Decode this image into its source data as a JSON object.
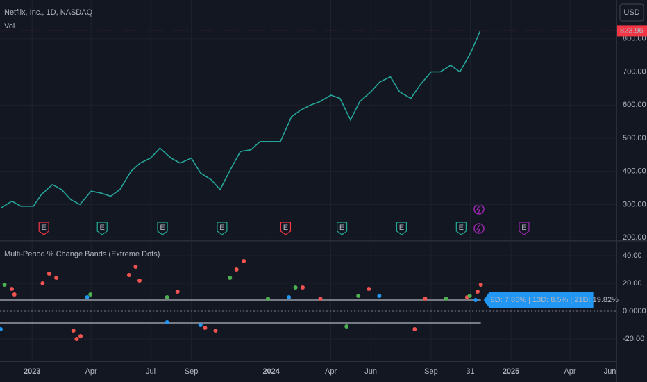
{
  "chart_data": [
    {
      "type": "line",
      "title": "Netflix, Inc., 1D, NASDAQ",
      "subtitle": "Vol",
      "currency": "USD",
      "color": "#26a69a",
      "x": [
        "2022-11-15",
        "2022-12-01",
        "2022-12-15",
        "2023-01-03",
        "2023-01-15",
        "2023-02-01",
        "2023-02-15",
        "2023-03-01",
        "2023-03-15",
        "2023-04-01",
        "2023-04-15",
        "2023-05-01",
        "2023-05-15",
        "2023-06-01",
        "2023-06-15",
        "2023-07-01",
        "2023-07-15",
        "2023-08-01",
        "2023-08-15",
        "2023-09-01",
        "2023-09-15",
        "2023-10-01",
        "2023-10-15",
        "2023-11-01",
        "2023-11-15",
        "2023-12-01",
        "2023-12-15",
        "2024-01-01",
        "2024-01-15",
        "2024-02-01",
        "2024-02-15",
        "2024-03-01",
        "2024-03-15",
        "2024-04-01",
        "2024-04-15",
        "2024-05-01",
        "2024-05-15",
        "2024-06-01",
        "2024-06-15",
        "2024-07-01",
        "2024-07-15",
        "2024-08-01",
        "2024-08-15",
        "2024-09-01",
        "2024-09-15",
        "2024-10-01",
        "2024-10-15",
        "2024-11-01",
        "2024-11-15"
      ],
      "values": [
        290,
        310,
        295,
        295,
        330,
        360,
        345,
        315,
        300,
        340,
        335,
        325,
        345,
        400,
        425,
        440,
        470,
        440,
        425,
        440,
        395,
        375,
        345,
        410,
        460,
        465,
        490,
        490,
        490,
        565,
        585,
        600,
        610,
        630,
        620,
        555,
        610,
        640,
        670,
        685,
        640,
        620,
        660,
        700,
        700,
        720,
        700,
        760,
        824
      ],
      "last_price": 823.96,
      "last_price_color": "#f23645",
      "ylim": [
        194,
        917
      ],
      "yticks": [
        {
          "value": 200,
          "label": "200.00"
        },
        {
          "value": 300,
          "label": "300.00"
        },
        {
          "value": 400,
          "label": "400.00"
        },
        {
          "value": 500,
          "label": "500.00"
        },
        {
          "value": 600,
          "label": "600.00"
        },
        {
          "value": 700,
          "label": "700.00"
        },
        {
          "value": 800,
          "label": "800.00"
        }
      ],
      "xlim": [
        "2022-11-13",
        "2025-06-11"
      ],
      "xticks": [
        {
          "value": "2023-01-01",
          "label": "2023"
        },
        {
          "value": "2023-04-01",
          "label": "Apr"
        },
        {
          "value": "2023-07-01",
          "label": "Jul"
        },
        {
          "value": "2023-09-01",
          "label": "Sep"
        },
        {
          "value": "2024-01-01",
          "label": "2024"
        },
        {
          "value": "2024-04-01",
          "label": "Apr"
        },
        {
          "value": "2024-06-01",
          "label": "Jun"
        },
        {
          "value": "2024-09-01",
          "label": "Sep"
        },
        {
          "value": "2024-10-31",
          "label": "31"
        },
        {
          "value": "2025-01-01",
          "label": "2025"
        },
        {
          "value": "2025-04-01",
          "label": "Apr"
        },
        {
          "value": "2025-06-01",
          "label": "Jun"
        }
      ],
      "events": [
        {
          "date": "2023-01-19",
          "label": "E",
          "color": "#f23645"
        },
        {
          "date": "2023-04-18",
          "label": "E",
          "color": "#22ab94"
        },
        {
          "date": "2023-07-19",
          "label": "E",
          "color": "#22ab94"
        },
        {
          "date": "2023-10-18",
          "label": "E",
          "color": "#22ab94"
        },
        {
          "date": "2024-01-23",
          "label": "E",
          "color": "#f23645"
        },
        {
          "date": "2024-04-18",
          "label": "E",
          "color": "#22ab94"
        },
        {
          "date": "2024-07-18",
          "label": "E",
          "color": "#22ab94"
        },
        {
          "date": "2024-10-17",
          "label": "E",
          "color": "#22ab94"
        },
        {
          "date": "2025-01-21",
          "label": "E",
          "color": "#9c27b0"
        }
      ],
      "grid": true
    },
    {
      "type": "scatter",
      "title": "Multi-Period % Change Bands (Extreme Dots)",
      "series": [
        {
          "color": "#f05350",
          "x": [
            "2022-12-01",
            "2022-12-05",
            "2023-01-17",
            "2023-01-27",
            "2023-02-07",
            "2023-03-05",
            "2023-03-10",
            "2023-03-16",
            "2023-05-29",
            "2023-06-08",
            "2023-06-14",
            "2023-08-11",
            "2023-09-22",
            "2023-10-08",
            "2023-11-09",
            "2023-11-20",
            "2024-02-18",
            "2024-03-16",
            "2024-05-29",
            "2024-08-07",
            "2024-08-23",
            "2024-10-26",
            "2024-11-11",
            "2024-11-16"
          ],
          "values": [
            16,
            12,
            20,
            27,
            24,
            -14,
            -20,
            -18,
            26,
            32,
            22,
            14,
            -12,
            -14,
            30,
            36,
            17,
            9,
            16,
            -13,
            9,
            10,
            14,
            19
          ]
        },
        {
          "color": "#4caf50",
          "x": [
            "2022-11-20",
            "2023-03-31",
            "2023-07-26",
            "2023-10-30",
            "2023-12-27",
            "2024-02-07",
            "2024-04-25",
            "2024-05-13",
            "2024-09-24",
            "2024-10-30"
          ],
          "values": [
            19,
            12,
            10,
            24,
            9,
            17,
            -11,
            11,
            9,
            11
          ]
        },
        {
          "color": "#2196f3",
          "x": [
            "2022-11-14",
            "2023-03-26",
            "2023-07-26",
            "2023-09-15",
            "2024-01-28",
            "2024-06-14",
            "2024-11-08"
          ],
          "values": [
            -13,
            10,
            -8,
            -10,
            10,
            11,
            8
          ]
        }
      ],
      "band_lines": [
        8,
        -8.5
      ],
      "value_label": "8D: 7.86% | 13D: 8.5% | 21D: 19.82%",
      "ylim": [
        -36,
        50
      ],
      "yticks": [
        {
          "value": -20,
          "label": "-20.00"
        },
        {
          "value": 0,
          "label": "0.0000"
        },
        {
          "value": 20,
          "label": "20.00"
        },
        {
          "value": 40,
          "label": "40.00"
        }
      ],
      "xlim": [
        "2022-11-13",
        "2025-06-11"
      ],
      "grid": true
    }
  ]
}
